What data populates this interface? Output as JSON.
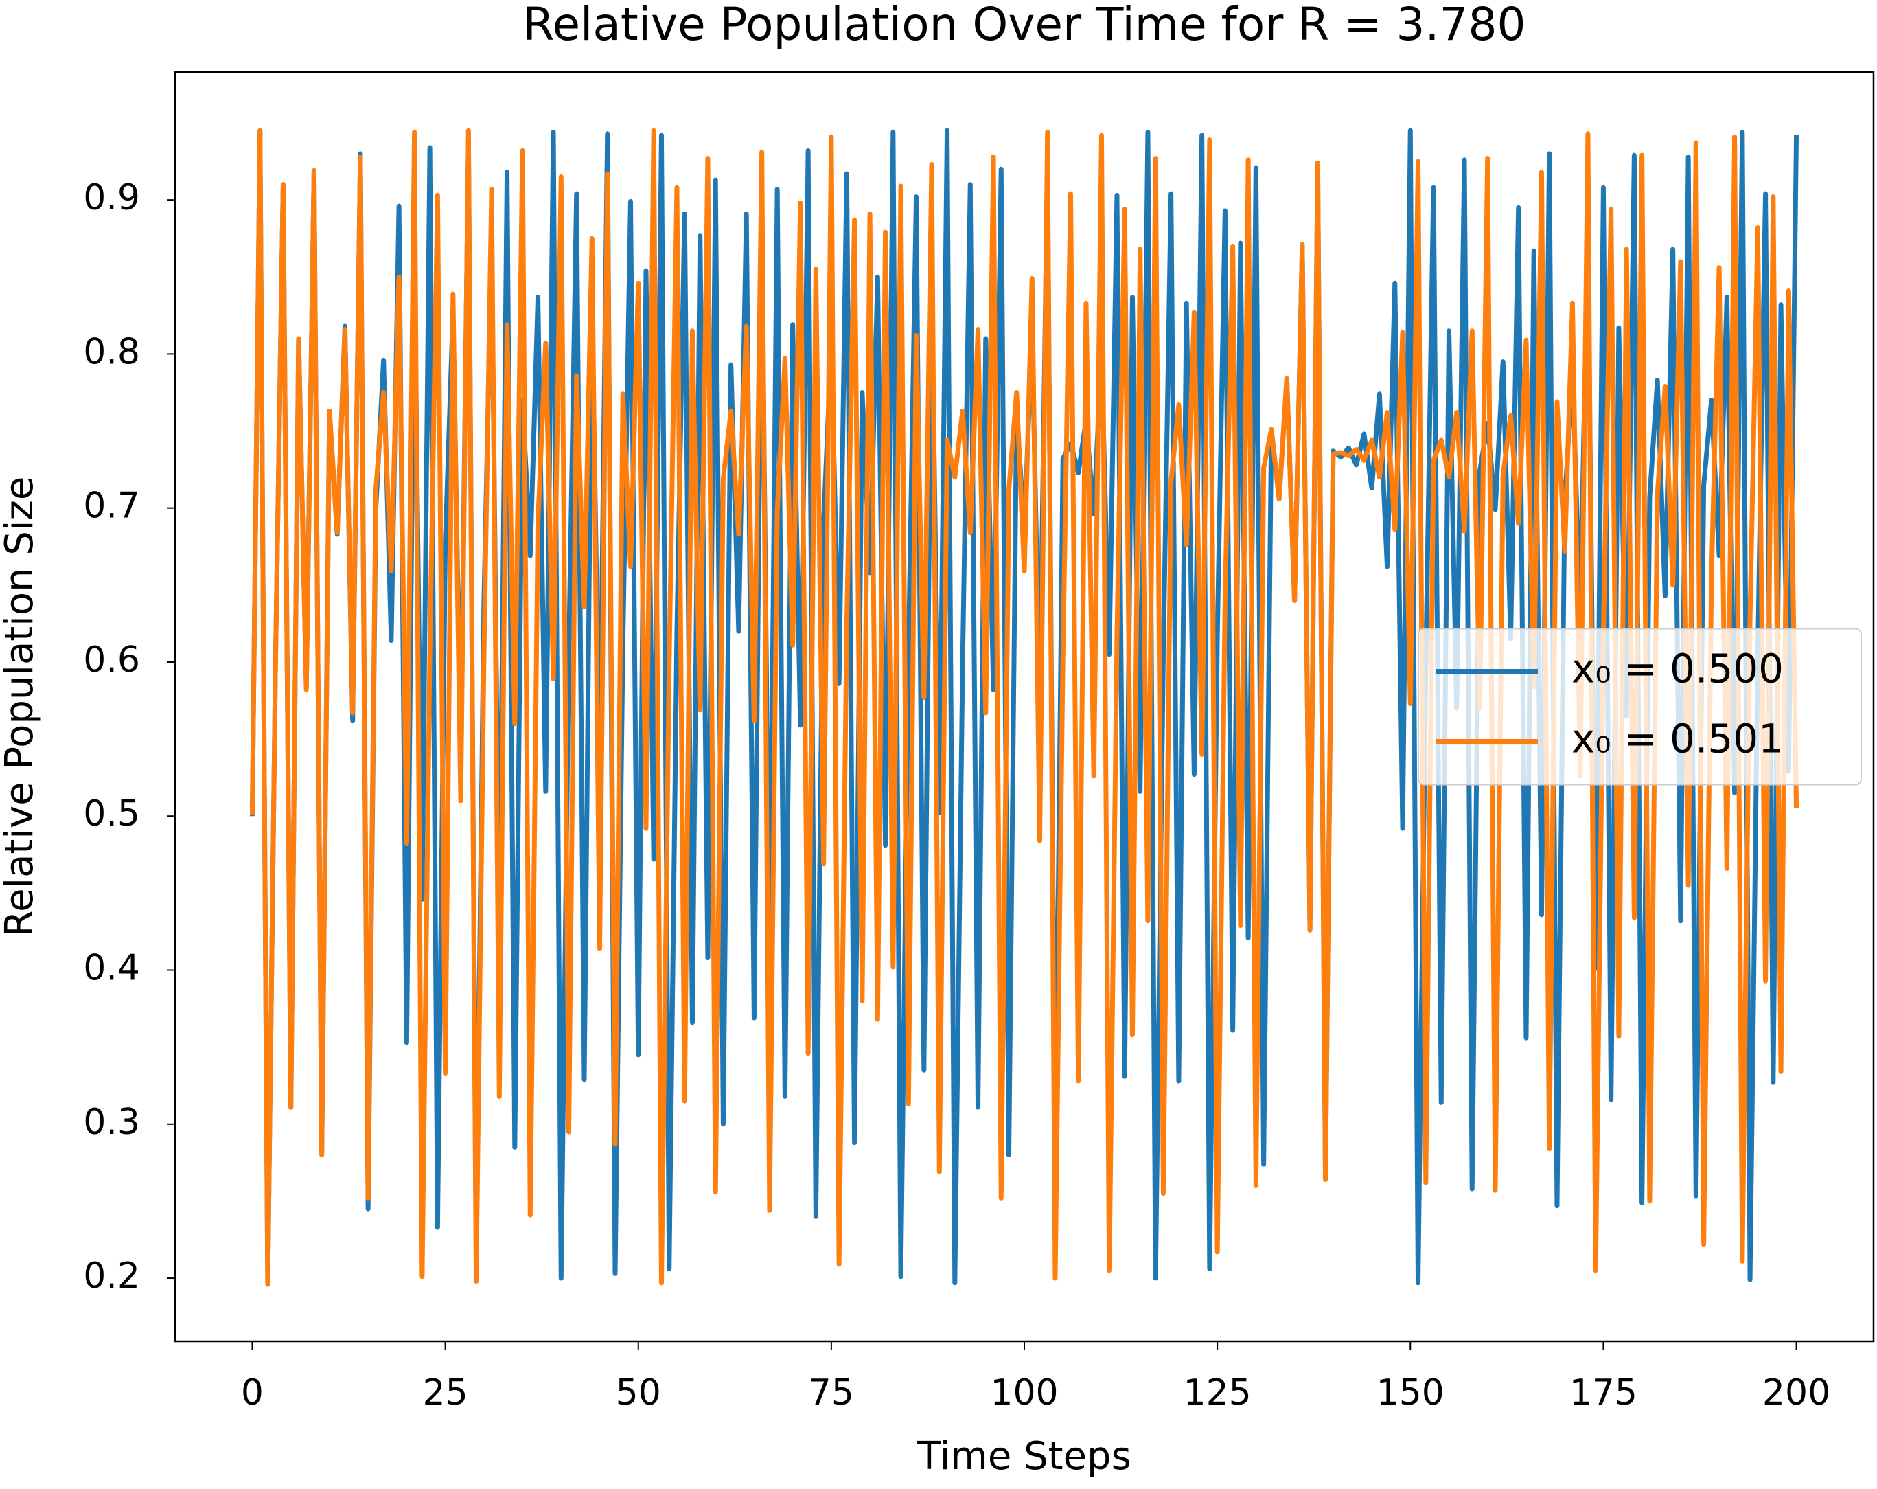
{
  "chart_data": {
    "type": "line",
    "title": "Relative Population Over Time for R = 3.780",
    "x_label": "Time Steps",
    "y_label": "Relative Population Size",
    "x": [
      0,
      1,
      2,
      3,
      4,
      5,
      6,
      7,
      8,
      9,
      10,
      11,
      12,
      13,
      14,
      15,
      16,
      17,
      18,
      19,
      20,
      21,
      22,
      23,
      24,
      25,
      26,
      27,
      28,
      29,
      30,
      31,
      32,
      33,
      34,
      35,
      36,
      37,
      38,
      39,
      40,
      41,
      42,
      43,
      44,
      45,
      46,
      47,
      48,
      49,
      50,
      51,
      52,
      53,
      54,
      55,
      56,
      57,
      58,
      59,
      60,
      61,
      62,
      63,
      64,
      65,
      66,
      67,
      68,
      69,
      70,
      71,
      72,
      73,
      74,
      75,
      76,
      77,
      78,
      79,
      80,
      81,
      82,
      83,
      84,
      85,
      86,
      87,
      88,
      89,
      90,
      91,
      92,
      93,
      94,
      95,
      96,
      97,
      98,
      99,
      100,
      101,
      102,
      103,
      104,
      105,
      106,
      107,
      108,
      109,
      110,
      111,
      112,
      113,
      114,
      115,
      116,
      117,
      118,
      119,
      120,
      121,
      122,
      123,
      124,
      125,
      126,
      127,
      128,
      129,
      130,
      131,
      132,
      133,
      134,
      135,
      136,
      137,
      138,
      139,
      140,
      141,
      142,
      143,
      144,
      145,
      146,
      147,
      148,
      149,
      150,
      151,
      152,
      153,
      154,
      155,
      156,
      157,
      158,
      159,
      160,
      161,
      162,
      163,
      164,
      165,
      166,
      167,
      168,
      169,
      170,
      171,
      172,
      173,
      174,
      175,
      176,
      177,
      178,
      179,
      180,
      181,
      182,
      183,
      184,
      185,
      186,
      187,
      188,
      189,
      190,
      191,
      192,
      193,
      194,
      195,
      196,
      197,
      198,
      199,
      200
    ],
    "series": [
      {
        "name": "x₀ = 0.500",
        "color": "#1f77b4",
        "values": [
          0.5,
          0.945,
          0.196,
          0.597,
          0.91,
          0.311,
          0.81,
          0.583,
          0.919,
          0.281,
          0.763,
          0.683,
          0.818,
          0.562,
          0.93,
          0.245,
          0.699,
          0.796,
          0.614,
          0.896,
          0.353,
          0.863,
          0.446,
          0.934,
          0.233,
          0.676,
          0.828,
          0.538,
          0.94,
          0.214,
          0.637,
          0.874,
          0.415,
          0.918,
          0.285,
          0.77,
          0.669,
          0.837,
          0.516,
          0.944,
          0.2,
          0.605,
          0.904,
          0.329,
          0.835,
          0.522,
          0.943,
          0.203,
          0.611,
          0.899,
          0.345,
          0.854,
          0.472,
          0.942,
          0.206,
          0.619,
          0.891,
          0.366,
          0.877,
          0.408,
          0.913,
          0.3,
          0.793,
          0.62,
          0.891,
          0.369,
          0.88,
          0.4,
          0.907,
          0.318,
          0.819,
          0.559,
          0.932,
          0.24,
          0.69,
          0.808,
          0.586,
          0.917,
          0.288,
          0.775,
          0.658,
          0.85,
          0.481,
          0.944,
          0.201,
          0.607,
          0.902,
          0.335,
          0.842,
          0.502,
          0.945,
          0.197,
          0.597,
          0.91,
          0.311,
          0.81,
          0.582,
          0.92,
          0.28,
          0.762,
          0.686,
          0.814,
          0.573,
          0.925,
          0.262,
          0.732,
          0.742,
          0.723,
          0.757,
          0.696,
          0.8,
          0.605,
          0.903,
          0.331,
          0.837,
          0.516,
          0.944,
          0.2,
          0.604,
          0.904,
          0.328,
          0.833,
          0.527,
          0.942,
          0.206,
          0.617,
          0.893,
          0.361,
          0.872,
          0.421,
          0.921,
          0.274,
          0.751,
          0.706,
          0.784,
          0.64,
          0.871,
          0.426,
          0.924,
          0.265,
          0.737,
          0.733,
          0.739,
          0.728,
          0.748,
          0.713,
          0.774,
          0.662,
          0.846,
          0.492,
          0.945,
          0.197,
          0.598,
          0.908,
          0.314,
          0.815,
          0.57,
          0.926,
          0.258,
          0.724,
          0.755,
          0.699,
          0.795,
          0.615,
          0.895,
          0.356,
          0.867,
          0.436,
          0.93,
          0.247,
          0.704,
          0.788,
          0.632,
          0.879,
          0.401,
          0.908,
          0.316,
          0.817,
          0.565,
          0.929,
          0.249,
          0.707,
          0.783,
          0.643,
          0.868,
          0.432,
          0.928,
          0.253,
          0.715,
          0.77,
          0.669,
          0.837,
          0.515,
          0.944,
          0.199,
          0.604,
          0.904,
          0.327,
          0.832,
          0.529,
          0.942
        ]
      },
      {
        "name": "x₀ = 0.501",
        "color": "#ff7f0e",
        "values": [
          0.501,
          0.945,
          0.196,
          0.597,
          0.91,
          0.311,
          0.81,
          0.582,
          0.919,
          0.28,
          0.763,
          0.684,
          0.816,
          0.567,
          0.928,
          0.252,
          0.712,
          0.775,
          0.659,
          0.85,
          0.482,
          0.944,
          0.201,
          0.606,
          0.903,
          0.333,
          0.839,
          0.51,
          0.945,
          0.198,
          0.6,
          0.907,
          0.318,
          0.819,
          0.56,
          0.932,
          0.241,
          0.691,
          0.807,
          0.589,
          0.915,
          0.295,
          0.786,
          0.636,
          0.875,
          0.414,
          0.917,
          0.287,
          0.774,
          0.662,
          0.846,
          0.492,
          0.945,
          0.197,
          0.599,
          0.908,
          0.315,
          0.815,
          0.569,
          0.927,
          0.256,
          0.719,
          0.763,
          0.683,
          0.818,
          0.562,
          0.931,
          0.244,
          0.698,
          0.797,
          0.611,
          0.898,
          0.346,
          0.855,
          0.469,
          0.941,
          0.209,
          0.624,
          0.887,
          0.38,
          0.891,
          0.368,
          0.879,
          0.402,
          0.909,
          0.313,
          0.812,
          0.577,
          0.923,
          0.269,
          0.744,
          0.72,
          0.763,
          0.684,
          0.816,
          0.567,
          0.928,
          0.252,
          0.712,
          0.775,
          0.659,
          0.849,
          0.484,
          0.944,
          0.2,
          0.604,
          0.904,
          0.328,
          0.833,
          0.526,
          0.942,
          0.205,
          0.616,
          0.894,
          0.358,
          0.868,
          0.432,
          0.927,
          0.255,
          0.717,
          0.767,
          0.676,
          0.827,
          0.54,
          0.939,
          0.217,
          0.641,
          0.87,
          0.429,
          0.926,
          0.26,
          0.726,
          0.751,
          0.706,
          0.784,
          0.64,
          0.871,
          0.426,
          0.924,
          0.264,
          0.735,
          0.736,
          0.734,
          0.738,
          0.731,
          0.744,
          0.72,
          0.762,
          0.686,
          0.814,
          0.573,
          0.925,
          0.262,
          0.731,
          0.744,
          0.72,
          0.762,
          0.685,
          0.815,
          0.57,
          0.927,
          0.257,
          0.721,
          0.76,
          0.69,
          0.809,
          0.584,
          0.918,
          0.284,
          0.769,
          0.672,
          0.833,
          0.526,
          0.943,
          0.205,
          0.616,
          0.894,
          0.357,
          0.868,
          0.434,
          0.929,
          0.25,
          0.709,
          0.779,
          0.65,
          0.86,
          0.455,
          0.937,
          0.222,
          0.654,
          0.856,
          0.466,
          0.941,
          0.211,
          0.629,
          0.882,
          0.393,
          0.902,
          0.334,
          0.841,
          0.505
        ]
      }
    ],
    "xlim": [
      -10,
      210
    ],
    "ylim": [
      0.159,
      0.983
    ],
    "xticks": [
      0,
      25,
      50,
      75,
      100,
      125,
      150,
      175,
      200
    ],
    "yticks": [
      0.2,
      0.3,
      0.4,
      0.5,
      0.6,
      0.7,
      0.8,
      0.9
    ],
    "grid": false,
    "legend_loc": "center right"
  }
}
